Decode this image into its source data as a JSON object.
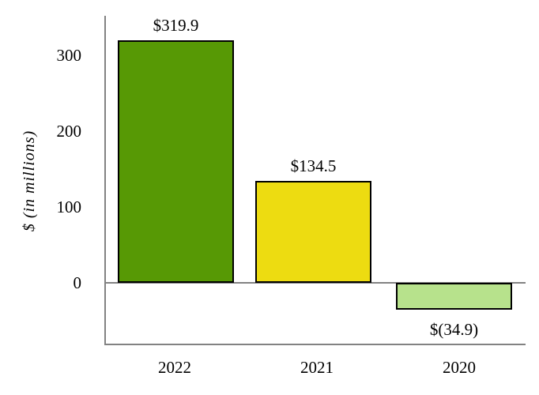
{
  "chart_data": {
    "type": "bar",
    "categories": [
      "2022",
      "2021",
      "2020"
    ],
    "values": [
      319.9,
      134.5,
      -34.9
    ],
    "value_labels": [
      "$319.9",
      "$134.5",
      "$(34.9)"
    ],
    "title": "",
    "xlabel": "",
    "ylabel": "$ (in millions)",
    "yticks": [
      300,
      200,
      100,
      0
    ],
    "ylim": [
      -81,
      352
    ],
    "grid": false,
    "legend": false,
    "bar_colors": [
      "#579905",
      "#EDDC11",
      "#B7E28C"
    ],
    "bar_border_color": "#000000",
    "axis_line_color": "#828282",
    "text_color": "#000000",
    "background": "#FFFFFF"
  }
}
